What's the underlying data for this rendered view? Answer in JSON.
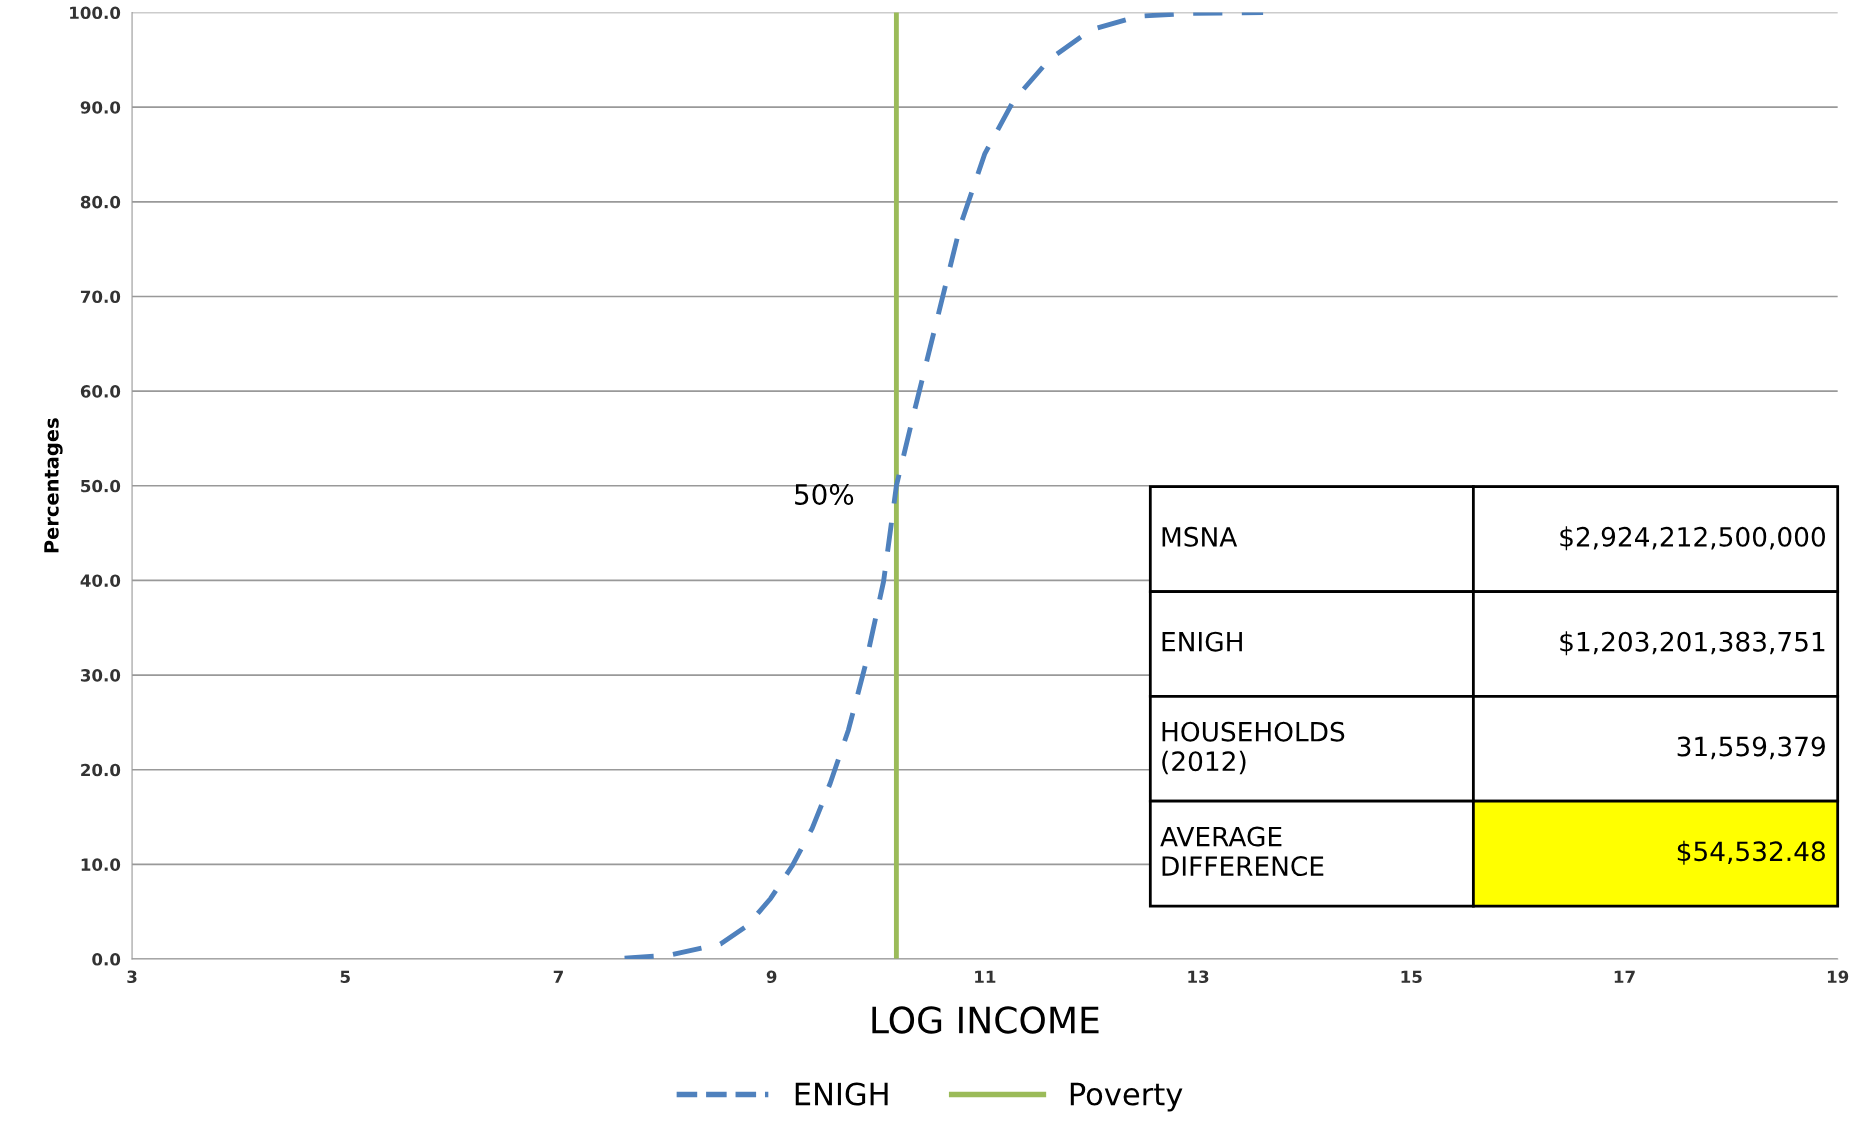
{
  "chart_data": {
    "type": "line",
    "xlabel": "LOG INCOME",
    "ylabel": "Percentages",
    "x": [
      7.62,
      8.04,
      8.52,
      8.77,
      8.99,
      9.19,
      9.38,
      9.55,
      9.72,
      9.88,
      10.05,
      10.17,
      10.33,
      10.55,
      10.77,
      11.0,
      11.27,
      11.61,
      12.0,
      12.44,
      12.89,
      13.61
    ],
    "series": [
      {
        "name": "ENIGH",
        "color": "#4f81bd",
        "line_style": "dashed",
        "values": [
          0.1,
          0.4,
          1.6,
          3.5,
          6.4,
          9.8,
          13.8,
          18.6,
          24.2,
          31.1,
          39.9,
          50.0,
          57.5,
          67.5,
          77.5,
          85.1,
          90.7,
          95.1,
          98.2,
          99.6,
          99.9,
          100.0
        ]
      }
    ],
    "ref_lines": [
      {
        "axis": "x",
        "value": 10.17,
        "label": "Poverty",
        "color": "#9bbb59"
      }
    ],
    "xlim": [
      3,
      19
    ],
    "xticks": [
      3,
      5,
      7,
      9,
      11,
      13,
      15,
      17,
      19
    ],
    "ylim": [
      0,
      100
    ],
    "yticks": [
      {
        "value": 0,
        "label": "0.0"
      },
      {
        "value": 10,
        "label": "10.0"
      },
      {
        "value": 20,
        "label": "20.0"
      },
      {
        "value": 30,
        "label": "30.0"
      },
      {
        "value": 40,
        "label": "40.0"
      },
      {
        "value": 50,
        "label": "50.0"
      },
      {
        "value": 60,
        "label": "60.0"
      },
      {
        "value": 70,
        "label": "70.0"
      },
      {
        "value": 80,
        "label": "80.0"
      },
      {
        "value": 90,
        "label": "90.0"
      },
      {
        "value": 100,
        "label": "100.0"
      }
    ],
    "grid": "y",
    "legend": "bottom",
    "annotations": [
      {
        "text": "50%",
        "x": 10.17,
        "y": 50
      },
      "MSNA",
      "$2,924,212,500,000",
      "ENIGH",
      "$1,203,201,383,751",
      "HOUSEHOLDS\n(2012)",
      "31,559,379",
      "AVERAGE\nDIFFERENCE",
      "$54,532.48"
    ]
  }
}
